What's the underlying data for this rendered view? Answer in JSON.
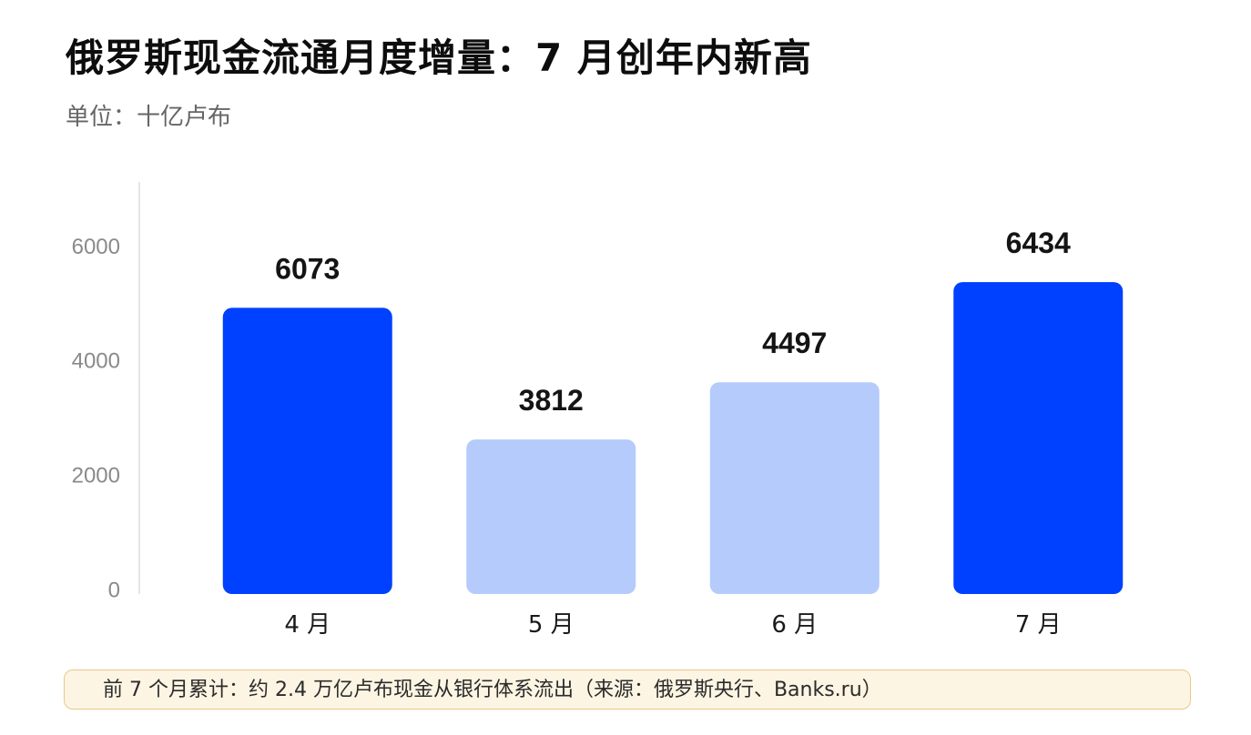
{
  "header": {
    "title": "俄罗斯现金流通月度增量：7 月创年内新高",
    "subtitle": "单位：十亿卢布"
  },
  "footnote": {
    "text": "前 7 个月累计：约 2.4 万亿卢布现金从银行体系流出（来源：俄罗斯央行、Banks.ru）"
  },
  "chart_data": {
    "type": "bar",
    "title": "俄罗斯现金流通月度增量：7 月创年内新高",
    "subtitle": "单位：十亿卢布",
    "categories": [
      "4 月",
      "5 月",
      "6 月",
      "7 月"
    ],
    "values": [
      6073,
      3812,
      4497,
      6434
    ],
    "bar_heights_on_axis": [
      5000,
      2700,
      3700,
      5450
    ],
    "ylim": [
      0,
      7200
    ],
    "yticks": [
      0,
      2000,
      4000,
      6000
    ],
    "grid": false,
    "legend": "none",
    "colors": {
      "highlight": "#0040ff",
      "normal": "#b5cbfb",
      "axis": "#e6e6e6"
    },
    "highlight": [
      true,
      false,
      false,
      true
    ]
  }
}
